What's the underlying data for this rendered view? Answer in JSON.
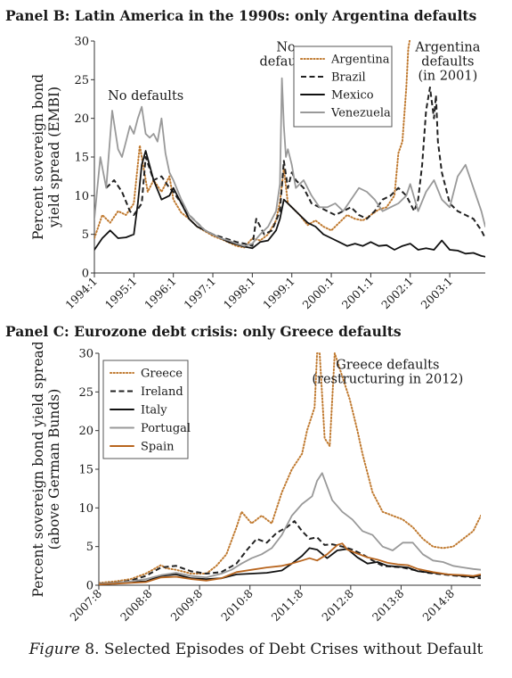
{
  "colors": {
    "argentina": "#c07a30",
    "brazil": "#222222",
    "mexico": "#111111",
    "venezuela": "#999999",
    "greece": "#c07a30",
    "ireland": "#222222",
    "italy": "#111111",
    "portugal": "#999999",
    "spain": "#b8651e"
  },
  "caption": {
    "figure_label": "Figure",
    "figure_rest": " 8. Selected Episodes of Debt Crises without Default"
  },
  "chart_data": [
    {
      "type": "line",
      "title": "Panel B: Latin America in the 1990s: only Argentina defaults",
      "ylabel_lines": [
        "Percent sovereign bond",
        "yield spread (EMBI)"
      ],
      "ylim": [
        0,
        30
      ],
      "yticks": [
        0,
        5,
        10,
        15,
        20,
        25,
        30
      ],
      "xlim": [
        1994.0,
        2003.9
      ],
      "xticks": [
        1994,
        1995,
        1996,
        1997,
        1998,
        1999,
        2000,
        2001,
        2002,
        2003
      ],
      "xtick_labels": [
        "1994:1",
        "1995:1",
        "1996:1",
        "1997:1",
        "1998:1",
        "1999:1",
        "2000:1",
        "2001:1",
        "2002:1",
        "2003:1"
      ],
      "legend_position": "top-right",
      "annotations": [
        {
          "lines": [
            "No defaults"
          ],
          "x": 1995.3,
          "y": 22.4
        },
        {
          "lines": [
            "No",
            "defaults"
          ],
          "x": 1998.85,
          "y": 28.7
        },
        {
          "lines": [
            "Argentina",
            "defaults",
            "(in 2001)"
          ],
          "x": 2002.95,
          "y": 28.7
        }
      ],
      "series": [
        {
          "name": "Argentina",
          "style": "dotted",
          "color_key": "argentina",
          "x": [
            1994.0,
            1994.2,
            1994.4,
            1994.6,
            1994.8,
            1995.0,
            1995.15,
            1995.25,
            1995.35,
            1995.5,
            1995.7,
            1995.9,
            1996.0,
            1996.2,
            1996.4,
            1996.6,
            1996.8,
            1997.0,
            1997.3,
            1997.6,
            1997.8,
            1998.0,
            1998.2,
            1998.4,
            1998.6,
            1998.7,
            1998.8,
            1998.9,
            1999.0,
            1999.2,
            1999.4,
            1999.6,
            1999.8,
            2000.0,
            2000.2,
            2000.4,
            2000.6,
            2000.8,
            2001.0,
            2001.2,
            2001.4,
            2001.6,
            2001.7,
            2001.8,
            2001.9,
            2001.95,
            2002.0
          ],
          "y": [
            4.5,
            7.5,
            6.5,
            8,
            7.5,
            9,
            16.5,
            13.5,
            10.5,
            12,
            10.5,
            12.5,
            9.5,
            7.8,
            7,
            6,
            5.4,
            4.8,
            4.2,
            3.5,
            3.3,
            4.5,
            4.2,
            5,
            6.8,
            9.2,
            13.5,
            9,
            8.5,
            7.5,
            6.2,
            6.8,
            6,
            5.5,
            6.5,
            7.5,
            7,
            6.8,
            7.5,
            8.2,
            8.5,
            10,
            15.5,
            17,
            24,
            29,
            31
          ]
        },
        {
          "name": "Brazil",
          "style": "dashed",
          "color_key": "brazil",
          "x": [
            1994.3,
            1994.5,
            1994.7,
            1994.9,
            1995.0,
            1995.2,
            1995.3,
            1995.5,
            1995.7,
            1995.9,
            1996.0,
            1996.2,
            1996.4,
            1996.6,
            1996.8,
            1997.0,
            1997.3,
            1997.6,
            1997.8,
            1998.0,
            1998.1,
            1998.3,
            1998.5,
            1998.7,
            1998.8,
            1998.9,
            1999.0,
            1999.1,
            1999.3,
            1999.5,
            1999.7,
            1999.9,
            2000.1,
            2000.3,
            2000.5,
            2000.7,
            2000.9,
            2001.1,
            2001.3,
            2001.5,
            2001.7,
            2001.9,
            2002.1,
            2002.2,
            2002.3,
            2002.4,
            2002.5,
            2002.55,
            2002.6,
            2002.65,
            2002.7,
            2002.8,
            2002.9,
            2003.0,
            2003.2,
            2003.4,
            2003.6,
            2003.8,
            2003.9
          ],
          "y": [
            11,
            12,
            10.5,
            8,
            7.5,
            9,
            15,
            12,
            12.5,
            11,
            10.5,
            9,
            7.5,
            6.5,
            5.5,
            5,
            4.5,
            4,
            3.8,
            3.5,
            7,
            5,
            5.5,
            8,
            14.5,
            11,
            13,
            12,
            11,
            9,
            8.5,
            8,
            7.5,
            8,
            8.5,
            7.5,
            7,
            8,
            9.5,
            10,
            11,
            10,
            8,
            9.5,
            14,
            21,
            24,
            22,
            20,
            23,
            17,
            13,
            11,
            9,
            8,
            7.5,
            7,
            5.5,
            4.5
          ]
        },
        {
          "name": "Mexico",
          "style": "solid",
          "color_key": "mexico",
          "x": [
            1994.0,
            1994.2,
            1994.4,
            1994.6,
            1994.8,
            1995.0,
            1995.1,
            1995.2,
            1995.3,
            1995.5,
            1995.7,
            1995.9,
            1996.0,
            1996.2,
            1996.4,
            1996.6,
            1996.8,
            1997.0,
            1997.2,
            1997.4,
            1997.6,
            1997.8,
            1998.0,
            1998.2,
            1998.4,
            1998.6,
            1998.7,
            1998.8,
            1998.9,
            1999.0,
            1999.2,
            1999.4,
            1999.6,
            1999.8,
            2000.0,
            2000.2,
            2000.4,
            2000.6,
            2000.8,
            2001.0,
            2001.2,
            2001.4,
            2001.6,
            2001.8,
            2002.0,
            2002.2,
            2002.4,
            2002.6,
            2002.8,
            2003.0,
            2003.2,
            2003.4,
            2003.6,
            2003.8,
            2003.9
          ],
          "y": [
            3,
            4.5,
            5.5,
            4.5,
            4.6,
            5,
            9,
            14,
            15.8,
            12,
            9.5,
            10,
            11,
            9,
            7,
            6,
            5.5,
            5,
            4.5,
            4,
            3.7,
            3.4,
            3.2,
            4,
            4.2,
            5.5,
            7,
            9.5,
            9,
            8.5,
            7.5,
            6.5,
            6,
            5,
            4.5,
            4,
            3.5,
            3.8,
            3.5,
            4,
            3.5,
            3.6,
            3,
            3.5,
            3.8,
            3,
            3.2,
            3,
            4.2,
            3,
            2.9,
            2.5,
            2.6,
            2.2,
            2.1
          ]
        },
        {
          "name": "Venezuela",
          "style": "solid",
          "color_key": "venezuela",
          "x": [
            1994.0,
            1994.15,
            1994.3,
            1994.45,
            1994.6,
            1994.7,
            1994.8,
            1994.9,
            1995.0,
            1995.1,
            1995.2,
            1995.3,
            1995.4,
            1995.5,
            1995.6,
            1995.7,
            1995.8,
            1995.9,
            1996.0,
            1996.2,
            1996.4,
            1996.6,
            1996.8,
            1997.0,
            1997.2,
            1997.4,
            1997.6,
            1997.8,
            1998.0,
            1998.2,
            1998.4,
            1998.6,
            1998.7,
            1998.75,
            1998.8,
            1998.85,
            1998.9,
            1999.0,
            1999.1,
            1999.3,
            1999.5,
            1999.7,
            1999.9,
            2000.1,
            2000.3,
            2000.5,
            2000.7,
            2000.9,
            2001.1,
            2001.3,
            2001.5,
            2001.7,
            2001.9,
            2002.0,
            2002.2,
            2002.4,
            2002.6,
            2002.8,
            2003.0,
            2003.2,
            2003.4,
            2003.6,
            2003.8,
            2003.9
          ],
          "y": [
            7,
            15,
            11,
            21,
            16,
            15,
            17,
            19,
            18,
            20,
            21.5,
            18,
            17.5,
            18,
            17,
            20,
            15.5,
            13,
            12,
            9.5,
            7.5,
            6.5,
            5.5,
            5,
            4.5,
            4.2,
            3.8,
            3.5,
            3.8,
            5,
            6,
            8,
            11.5,
            25.2,
            19,
            15,
            16,
            14,
            11,
            12,
            10,
            8.5,
            8.5,
            9,
            8,
            9.5,
            11,
            10.5,
            9.5,
            8,
            8.5,
            9,
            10,
            11.5,
            8,
            10.5,
            12,
            9.5,
            8.5,
            12.5,
            14,
            11,
            8,
            6
          ]
        }
      ]
    },
    {
      "type": "line",
      "title": "Panel C: Eurozone debt crisis: only Greece defaults",
      "ylabel_lines": [
        "Percent sovereign bond yield spread",
        "(above German Bunds)"
      ],
      "ylim": [
        0,
        30
      ],
      "yticks": [
        0,
        5,
        10,
        15,
        20,
        25,
        30
      ],
      "xlim": [
        2007.667,
        2015.25
      ],
      "xticks": [
        2007.667,
        2008.667,
        2009.667,
        2010.667,
        2011.667,
        2012.667,
        2013.667,
        2014.667
      ],
      "xtick_labels": [
        "2007:8",
        "2008:8",
        "2009:8",
        "2010:8",
        "2011:8",
        "2012:8",
        "2013:8",
        "2014:8"
      ],
      "legend_position": "top-left",
      "annotations": [
        {
          "lines": [
            "Greece defaults",
            "(restructuring in 2012)"
          ],
          "x": 2013.4,
          "y": 28.0
        }
      ],
      "series": [
        {
          "name": "Greece",
          "style": "dotted",
          "color_key": "greece",
          "x": [
            2007.667,
            2008.0,
            2008.3,
            2008.6,
            2008.9,
            2009.0,
            2009.2,
            2009.5,
            2009.8,
            2010.0,
            2010.2,
            2010.4,
            2010.5,
            2010.7,
            2010.9,
            2011.1,
            2011.3,
            2011.5,
            2011.7,
            2011.8,
            2011.95,
            2012.0,
            2012.05,
            2012.15,
            2012.25,
            2012.35,
            2012.5,
            2012.65,
            2012.8,
            2012.9,
            2013.1,
            2013.3,
            2013.5,
            2013.7,
            2013.9,
            2014.1,
            2014.3,
            2014.5,
            2014.7,
            2014.9,
            2015.1,
            2015.25
          ],
          "y": [
            0.3,
            0.5,
            0.8,
            1.5,
            2.6,
            2.2,
            2,
            1.5,
            1.5,
            2.5,
            4,
            7.5,
            9.5,
            8,
            9,
            8,
            12,
            15,
            17,
            20,
            23,
            30,
            30,
            19,
            18,
            30,
            27,
            24,
            20,
            17,
            12,
            9.5,
            9,
            8.5,
            7.5,
            6,
            5,
            4.8,
            5,
            6,
            7,
            9
          ]
        },
        {
          "name": "Ireland",
          "style": "dashed",
          "color_key": "ireland",
          "x": [
            2007.667,
            2008.0,
            2008.3,
            2008.6,
            2008.9,
            2009.2,
            2009.5,
            2009.8,
            2010.1,
            2010.4,
            2010.6,
            2010.8,
            2011.0,
            2011.2,
            2011.4,
            2011.55,
            2011.7,
            2011.85,
            2012.0,
            2012.15,
            2012.3,
            2012.5,
            2012.7,
            2012.9,
            2013.1,
            2013.3,
            2013.5,
            2013.7,
            2013.9,
            2014.2,
            2014.5,
            2014.8,
            2015.1,
            2015.25
          ],
          "y": [
            0.2,
            0.3,
            0.6,
            1.2,
            2.3,
            2.5,
            1.8,
            1.5,
            1.7,
            2.8,
            4.5,
            6,
            5.5,
            6.8,
            7.5,
            8.3,
            7,
            6,
            6.2,
            5.2,
            5.3,
            5,
            4.6,
            4,
            3.2,
            2.5,
            2.4,
            2.3,
            2,
            1.6,
            1.4,
            1.2,
            1,
            0.9
          ]
        },
        {
          "name": "Italy",
          "style": "solid",
          "color_key": "italy",
          "x": [
            2007.667,
            2008.0,
            2008.3,
            2008.6,
            2008.9,
            2009.2,
            2009.5,
            2009.8,
            2010.1,
            2010.4,
            2010.7,
            2011.0,
            2011.3,
            2011.5,
            2011.7,
            2011.85,
            2012.0,
            2012.2,
            2012.4,
            2012.6,
            2012.8,
            2013.0,
            2013.2,
            2013.4,
            2013.6,
            2013.8,
            2014.0,
            2014.3,
            2014.6,
            2014.9,
            2015.1,
            2015.25
          ],
          "y": [
            0.2,
            0.3,
            0.4,
            0.5,
            1.2,
            1.4,
            0.9,
            0.8,
            0.9,
            1.4,
            1.5,
            1.6,
            1.9,
            2.8,
            3.8,
            4.8,
            4.6,
            3.5,
            4.5,
            4.7,
            3.6,
            2.8,
            3,
            2.5,
            2.4,
            2.3,
            1.8,
            1.6,
            1.4,
            1.2,
            1.1,
            1.2
          ]
        },
        {
          "name": "Portugal",
          "style": "solid",
          "color_key": "portugal",
          "x": [
            2007.667,
            2008.0,
            2008.3,
            2008.6,
            2008.9,
            2009.2,
            2009.5,
            2009.8,
            2010.1,
            2010.3,
            2010.5,
            2010.7,
            2010.9,
            2011.1,
            2011.3,
            2011.5,
            2011.7,
            2011.9,
            2012.0,
            2012.1,
            2012.3,
            2012.5,
            2012.7,
            2012.9,
            2013.1,
            2013.3,
            2013.5,
            2013.7,
            2013.9,
            2014.1,
            2014.3,
            2014.5,
            2014.7,
            2014.9,
            2015.1,
            2015.25
          ],
          "y": [
            0.2,
            0.3,
            0.5,
            0.8,
            1.3,
            1.6,
            1.2,
            1,
            1.5,
            2,
            2.8,
            3.5,
            4,
            4.8,
            6.5,
            9,
            10.5,
            11.5,
            13.5,
            14.5,
            11,
            9.5,
            8.5,
            7,
            6.5,
            5,
            4.5,
            5.5,
            5.5,
            4,
            3.2,
            3,
            2.5,
            2.3,
            2.1,
            2
          ]
        },
        {
          "name": "Spain",
          "style": "solid",
          "color_key": "spain",
          "x": [
            2007.667,
            2008.0,
            2008.3,
            2008.6,
            2008.9,
            2009.2,
            2009.5,
            2009.8,
            2010.1,
            2010.4,
            2010.7,
            2011.0,
            2011.3,
            2011.5,
            2011.7,
            2011.85,
            2012.0,
            2012.2,
            2012.4,
            2012.5,
            2012.6,
            2012.8,
            2013.0,
            2013.2,
            2013.4,
            2013.6,
            2013.8,
            2014.0,
            2014.3,
            2014.6,
            2014.9,
            2015.1,
            2015.25
          ],
          "y": [
            0.1,
            0.2,
            0.3,
            0.4,
            1,
            1.1,
            0.8,
            0.6,
            0.9,
            1.7,
            2,
            2.3,
            2.5,
            2.8,
            3.2,
            3.5,
            3.2,
            4,
            5.2,
            5.4,
            4.6,
            4.1,
            3.6,
            3.3,
            2.9,
            2.7,
            2.6,
            2.1,
            1.7,
            1.4,
            1.3,
            1.2,
            1.4
          ]
        }
      ]
    }
  ]
}
